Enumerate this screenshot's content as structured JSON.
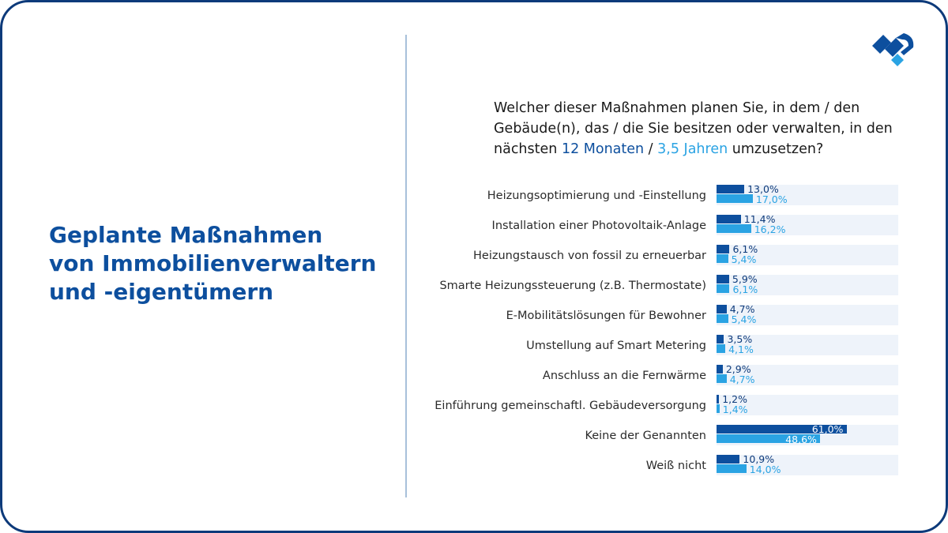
{
  "headline": [
    "Geplante Maßnahmen",
    "von Immobilienverwaltern",
    "und -eigentümern"
  ],
  "question": {
    "line1": "Welcher dieser Maßnahmen planen Sie, in dem / den",
    "line2": "Gebäude(n), das / die Sie besitzen oder verwalten, in den",
    "line3_pre": "nächsten ",
    "line3_a": "12 Monaten",
    "line3_sep": " / ",
    "line3_b": "3,5 Jahren",
    "line3_post": " umzusetzen?"
  },
  "colors": {
    "series_a": "#0d4f9e",
    "series_b": "#2aa3e3",
    "track": "#eef3fa",
    "headline": "#0d4f9e"
  },
  "logo_icon": "company-logo-icon",
  "chart_data": {
    "type": "bar",
    "orientation": "horizontal",
    "categories": [
      "Heizungsoptimierung und -Einstellung",
      "Installation einer Photovoltaik-Anlage",
      "Heizungstausch von fossil zu erneuerbar",
      "Smarte Heizungssteuerung (z.B. Thermostate)",
      "E-Mobilitätslösungen für Bewohner",
      "Umstellung auf Smart Metering",
      "Anschluss an die Fernwärme",
      "Einführung gemeinschaftl. Gebäudeversorgung",
      "Keine der Genannten",
      "Weiß nicht"
    ],
    "series": [
      {
        "values": [
          13.0,
          11.4,
          6.1,
          5.9,
          4.7,
          3.5,
          2.9,
          1.2,
          61.0,
          10.9
        ],
        "labels": [
          "13,0%",
          "11,4%",
          "6,1%",
          "5,9%",
          "4,7%",
          "3,5%",
          "2,9%",
          "1,2%",
          "61,0%",
          "10,9%"
        ]
      },
      {
        "values": [
          17.0,
          16.2,
          5.4,
          6.1,
          5.4,
          4.1,
          4.7,
          1.4,
          48.6,
          14.0
        ],
        "labels": [
          "17,0%",
          "16,2%",
          "5,4%",
          "6,1%",
          "5,4%",
          "4,1%",
          "4,7%",
          "1,4%",
          "48,6%",
          "14,0%"
        ]
      }
    ],
    "xlim": [
      0,
      100
    ],
    "unit": "%"
  }
}
